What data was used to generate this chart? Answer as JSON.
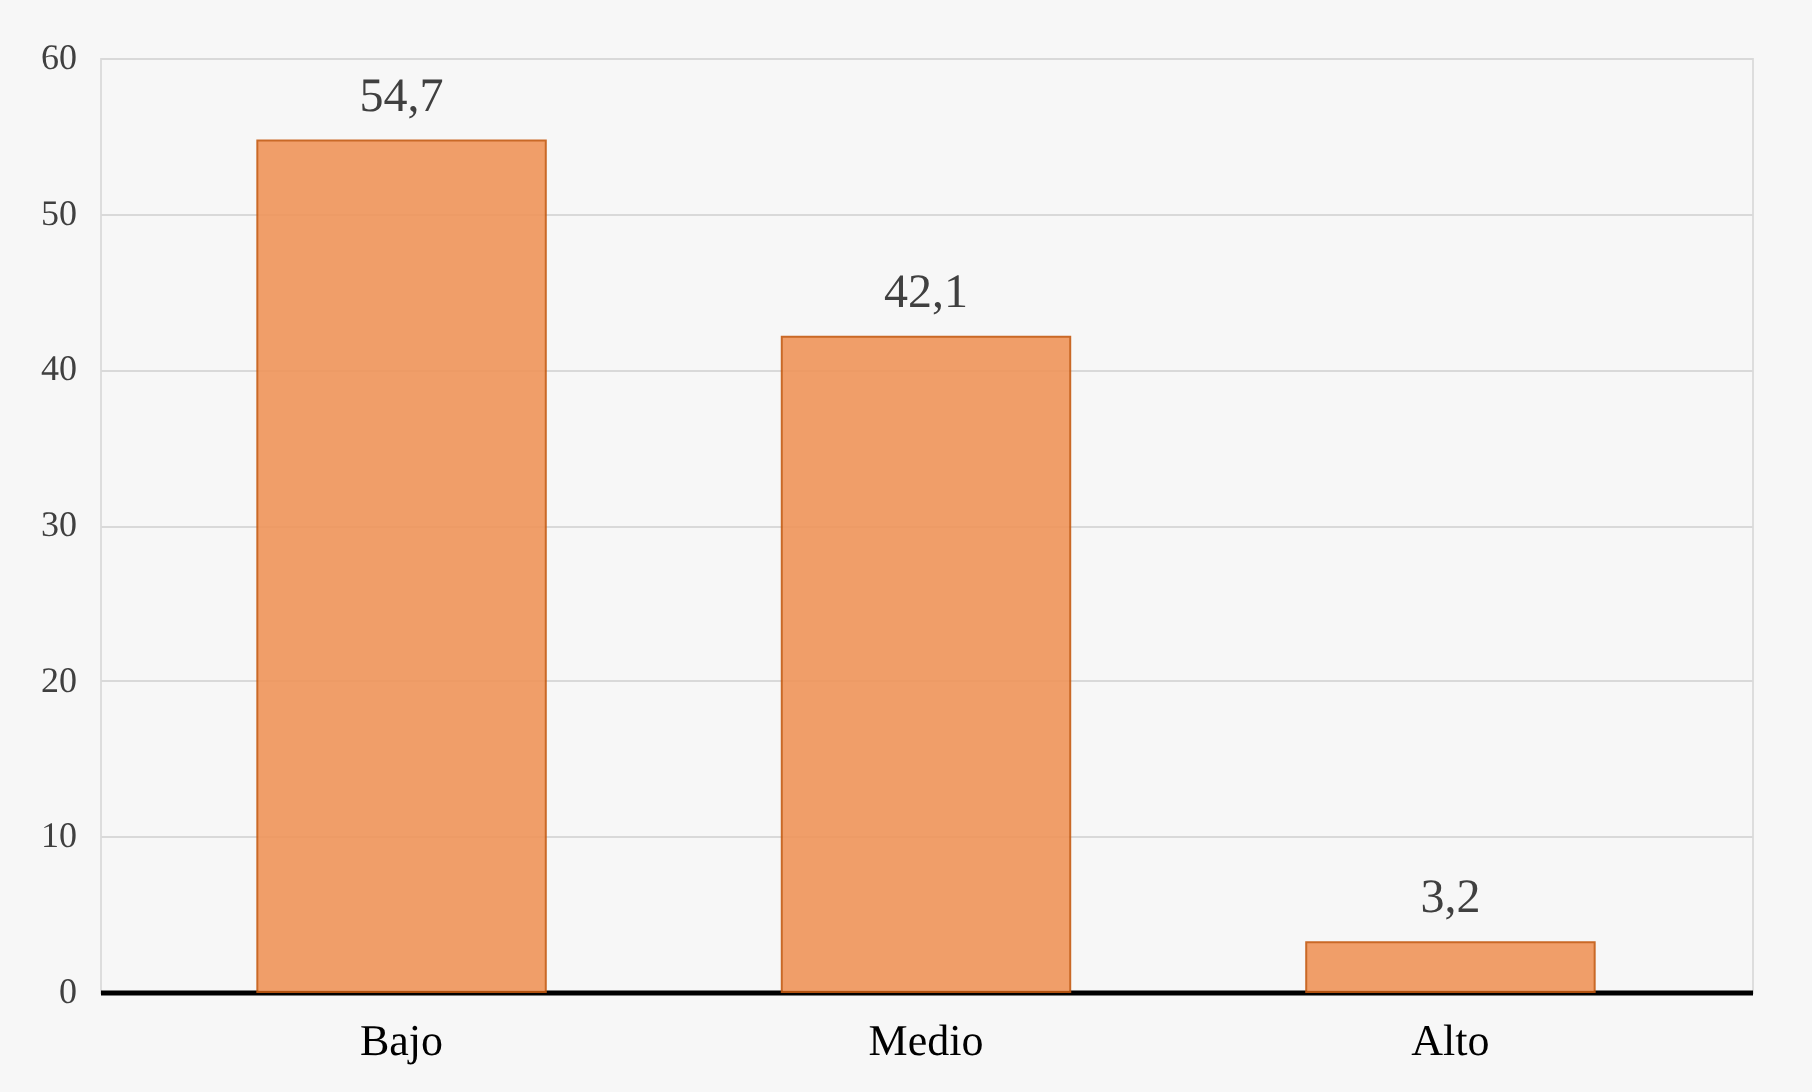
{
  "chart_data": {
    "type": "bar",
    "categories": [
      "Bajo",
      "Medio",
      "Alto"
    ],
    "values": [
      54.7,
      42.1,
      3.2
    ],
    "value_labels": [
      "54,7",
      "42,1",
      "3,2"
    ],
    "color": "#f0955a",
    "ylim": [
      0,
      60
    ],
    "yticks": [
      0,
      10,
      20,
      30,
      40,
      50,
      60
    ],
    "grid": "y"
  }
}
